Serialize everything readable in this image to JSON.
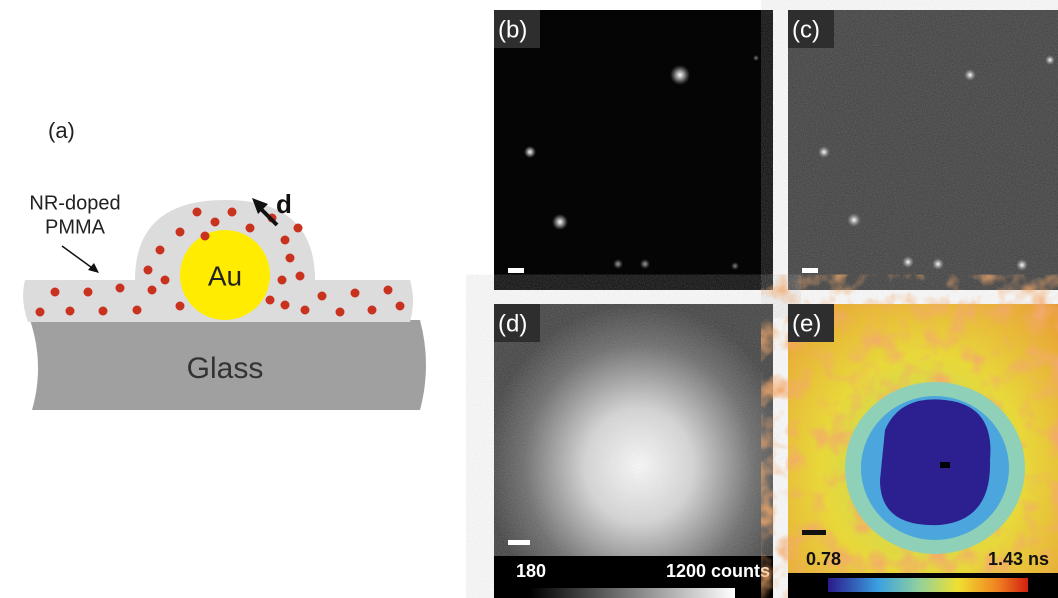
{
  "panel_a": {
    "label": "(a)",
    "film_label": [
      "NR-doped",
      "PMMA"
    ],
    "dipole_label": "d",
    "particle_label": "Au",
    "substrate_label": "Glass"
  },
  "panel_b": {
    "label": "(b)"
  },
  "panel_c": {
    "label": "(c)"
  },
  "panel_d": {
    "label": "(d)",
    "colorbar_min": "180",
    "colorbar_max": "1200 counts"
  },
  "panel_e": {
    "label": "(e)",
    "colorbar_min": "0.78",
    "colorbar_max": "1.43 ns"
  }
}
